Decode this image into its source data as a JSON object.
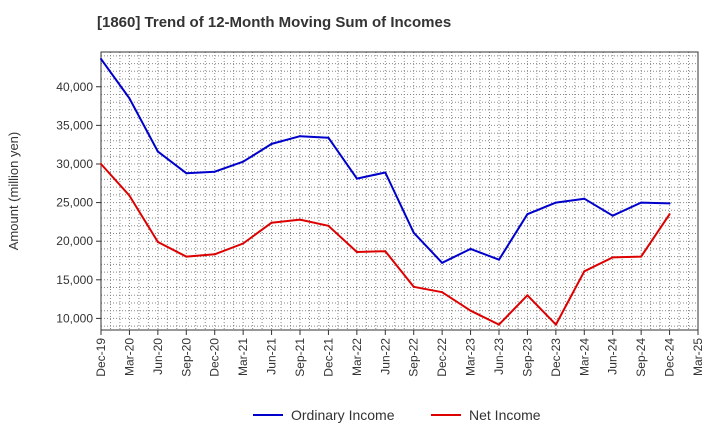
{
  "chart_data": {
    "type": "line",
    "title": "[1860]  Trend of 12-Month Moving Sum of Incomes",
    "xlabel": "",
    "ylabel": "Amount (million yen)",
    "categories": [
      "Dec-19",
      "Mar-20",
      "Jun-20",
      "Sep-20",
      "Dec-20",
      "Mar-21",
      "Jun-21",
      "Sep-21",
      "Dec-21",
      "Mar-22",
      "Jun-22",
      "Sep-22",
      "Dec-22",
      "Mar-23",
      "Jun-23",
      "Sep-23",
      "Dec-23",
      "Mar-24",
      "Jun-24",
      "Sep-24",
      "Dec-24",
      "Mar-25"
    ],
    "ylim": [
      8500,
      44500
    ],
    "yticks": [
      10000,
      15000,
      20000,
      25000,
      30000,
      35000,
      40000
    ],
    "ytick_labels": [
      "10,000",
      "15,000",
      "20,000",
      "25,000",
      "30,000",
      "35,000",
      "40,000"
    ],
    "grid": true,
    "legend_position": "bottom",
    "series": [
      {
        "name": "Ordinary Income",
        "color": "#0000cc",
        "values": [
          43600,
          38500,
          31600,
          28800,
          29000,
          30300,
          32600,
          33600,
          33400,
          28100,
          28900,
          21100,
          17200,
          19000,
          17600,
          23500,
          25000,
          25500,
          23300,
          25000,
          24900,
          null
        ]
      },
      {
        "name": "Net Income",
        "color": "#dd0000",
        "values": [
          30000,
          25900,
          19900,
          18000,
          18300,
          19700,
          22400,
          22800,
          22000,
          18600,
          18700,
          14100,
          13400,
          11000,
          9200,
          13000,
          9200,
          16100,
          17900,
          18000,
          23500,
          null
        ]
      }
    ]
  }
}
